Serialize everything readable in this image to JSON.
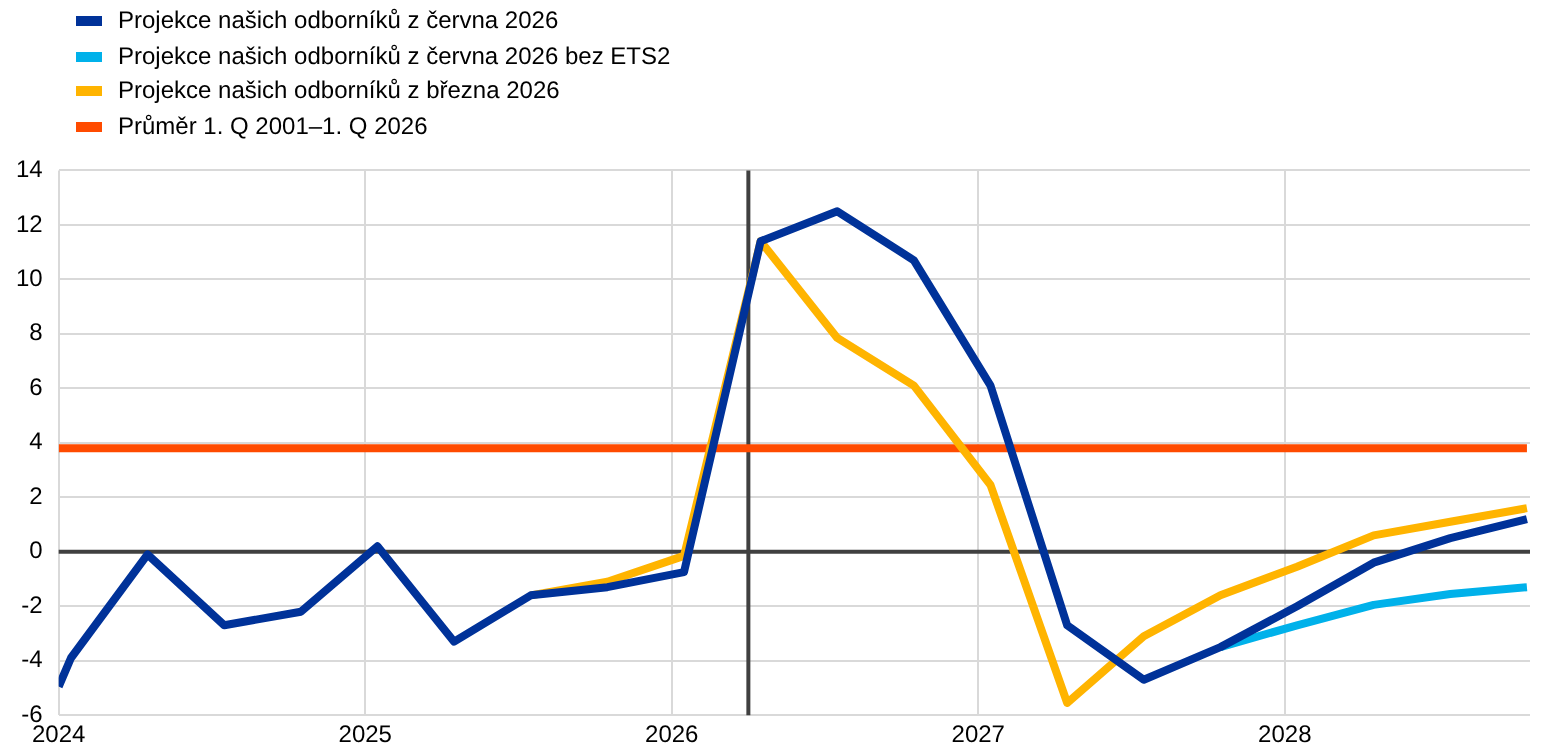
{
  "chart_data": {
    "type": "line",
    "x": [
      2024,
      2024.04,
      2024.29,
      2024.54,
      2024.79,
      2025.04,
      2025.29,
      2025.54,
      2025.79,
      2026.04,
      2026.29,
      2026.54,
      2026.79,
      2027.04,
      2027.29,
      2027.54,
      2027.79,
      2028.04,
      2028.29,
      2028.54,
      2028.79
    ],
    "series": [
      {
        "name": "Projekce našich odborníků z června 2026",
        "color": "#003299",
        "values": [
          -4.95,
          -3.9,
          -0.1,
          -2.7,
          -2.2,
          0.2,
          -3.3,
          -1.6,
          -1.3,
          -0.75,
          11.4,
          12.5,
          10.7,
          6.1,
          -2.7,
          -4.7,
          -3.5,
          -2.0,
          -0.4,
          0.5,
          1.2
        ]
      },
      {
        "name": "Projekce našich odborníků z června 2026 bez ETS2",
        "color": "#00b1ea",
        "values": [
          null,
          null,
          null,
          null,
          null,
          null,
          null,
          null,
          null,
          null,
          null,
          null,
          null,
          null,
          null,
          null,
          -3.5,
          -2.7,
          -1.95,
          -1.55,
          -1.3
        ]
      },
      {
        "name": "Projekce našich odborníků z března 2026",
        "color": "#ffb400",
        "values": [
          null,
          null,
          null,
          null,
          null,
          null,
          null,
          -1.6,
          -1.1,
          -0.15,
          11.4,
          7.85,
          6.1,
          2.45,
          -5.55,
          -3.1,
          -1.6,
          -0.55,
          0.6,
          1.1,
          1.6
        ]
      },
      {
        "name": "Průměr 1. Q 2001–1. Q 2026",
        "color": "#ff4b00",
        "x": [
          2024,
          2028.79
        ],
        "values": [
          3.8,
          3.8
        ]
      }
    ],
    "xlim": [
      2024,
      2028.8
    ],
    "xticks": [
      2024,
      2025,
      2026,
      2027,
      2028
    ],
    "ylim": [
      -6,
      14
    ],
    "yticks": [
      -6,
      -4,
      -2,
      0,
      2,
      4,
      6,
      8,
      10,
      12,
      14
    ],
    "ref_lines": [
      {
        "axis": "y",
        "value": 0,
        "color": "#404040"
      },
      {
        "axis": "x",
        "value": 2026.25,
        "color": "#404040"
      }
    ],
    "grid": true,
    "legend": "top left",
    "marker": "none",
    "line_style": "solid"
  }
}
